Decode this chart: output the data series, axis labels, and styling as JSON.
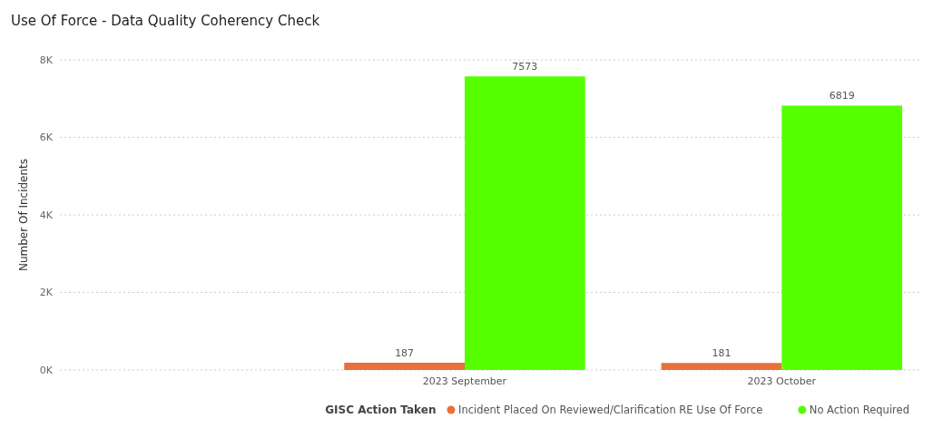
{
  "chart_data": {
    "type": "bar",
    "title": "Use Of Force - Data Quality Coherency Check",
    "ylabel": "Number Of Incidents",
    "legend_title": "GISC Action Taken",
    "categories": [
      null,
      "2023 September",
      "2023 October"
    ],
    "series": [
      {
        "name": "Incident Placed On Reviewed/Clarification RE Use Of Force",
        "color": "#e8703a",
        "values": [
          null,
          187,
          181
        ]
      },
      {
        "name": "No Action Required",
        "color": "#55ff00",
        "values": [
          null,
          7573,
          6819
        ]
      }
    ],
    "ylim": [
      0,
      8000
    ],
    "yticks": [
      {
        "value": 0,
        "label": "0K"
      },
      {
        "value": 2000,
        "label": "2K"
      },
      {
        "value": 4000,
        "label": "4K"
      },
      {
        "value": 6000,
        "label": "6K"
      },
      {
        "value": 8000,
        "label": "8K"
      }
    ],
    "grid": "y",
    "legend": "bottom",
    "data_labels": true
  }
}
